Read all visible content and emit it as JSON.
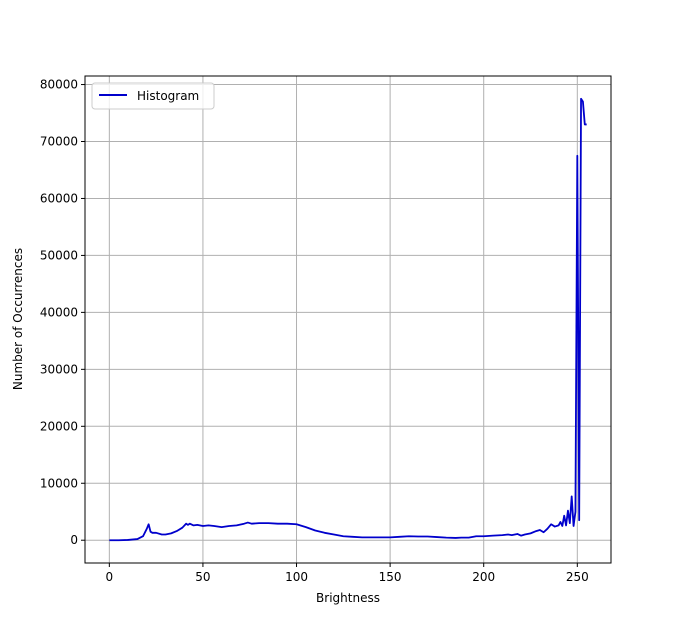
{
  "chart_data": {
    "type": "line",
    "title": "",
    "xlabel": "Brightness",
    "ylabel": "Number of Occurrences",
    "xlim": [
      -13,
      268
    ],
    "ylim": [
      -4000,
      81500
    ],
    "xticks": [
      0,
      50,
      100,
      150,
      200,
      250
    ],
    "yticks": [
      0,
      10000,
      20000,
      30000,
      40000,
      50000,
      60000,
      70000,
      80000
    ],
    "xtick_labels": [
      "0",
      "50",
      "100",
      "150",
      "200",
      "250"
    ],
    "ytick_labels": [
      "0",
      "10000",
      "20000",
      "30000",
      "40000",
      "50000",
      "60000",
      "70000",
      "80000"
    ],
    "grid": true,
    "legend_position": "top-left",
    "series": [
      {
        "name": "Histogram",
        "color": "#0000cc",
        "x": [
          0,
          5,
          10,
          15,
          18,
          20,
          21,
          22,
          23,
          25,
          28,
          30,
          33,
          36,
          39,
          41,
          42,
          43,
          45,
          47,
          50,
          53,
          56,
          60,
          64,
          68,
          72,
          74,
          76,
          80,
          85,
          90,
          95,
          100,
          105,
          110,
          115,
          120,
          125,
          130,
          135,
          140,
          145,
          150,
          155,
          160,
          165,
          170,
          175,
          180,
          185,
          188,
          192,
          196,
          200,
          205,
          210,
          213,
          215,
          218,
          220,
          222,
          225,
          228,
          230,
          232,
          234,
          236,
          238,
          240,
          241,
          242,
          243,
          244,
          245,
          246,
          247,
          248,
          249,
          250,
          251,
          252,
          253,
          254,
          255
        ],
        "y": [
          0,
          0,
          50,
          200,
          700,
          2000,
          2800,
          1500,
          1300,
          1300,
          1000,
          1000,
          1200,
          1600,
          2200,
          2900,
          2700,
          2900,
          2600,
          2700,
          2500,
          2600,
          2500,
          2300,
          2500,
          2600,
          2900,
          3100,
          2900,
          3000,
          3000,
          2900,
          2900,
          2800,
          2300,
          1700,
          1300,
          1000,
          700,
          600,
          500,
          500,
          500,
          500,
          600,
          700,
          650,
          650,
          550,
          450,
          400,
          450,
          450,
          700,
          700,
          800,
          900,
          1000,
          900,
          1100,
          800,
          1000,
          1200,
          1600,
          1800,
          1400,
          2000,
          2800,
          2400,
          2600,
          3200,
          2500,
          4300,
          2600,
          5200,
          3000,
          7700,
          2500,
          5000,
          67500,
          3500,
          77500,
          77000,
          73000,
          73000
        ]
      }
    ]
  }
}
